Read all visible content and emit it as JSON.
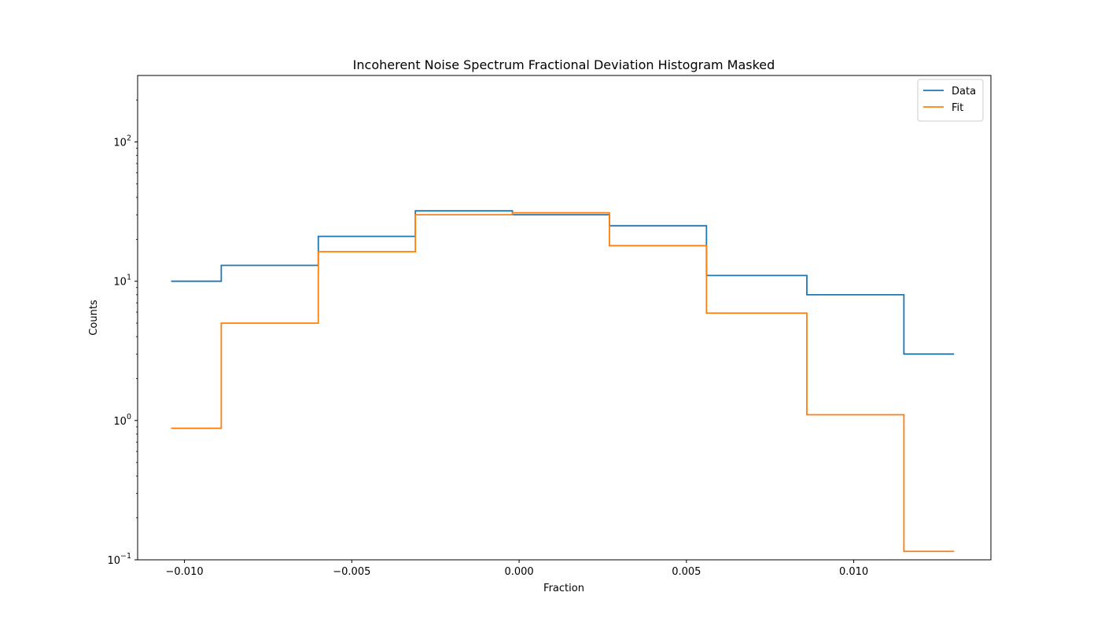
{
  "chart_data": {
    "type": "line",
    "drawstyle": "steps-post",
    "title": "Incoherent Noise Spectrum Fractional Deviation Histogram Masked",
    "xlabel": "Fraction",
    "ylabel": "Counts",
    "xlim": [
      -0.0114,
      0.0141
    ],
    "ylim": [
      0.1,
      300
    ],
    "yscale": "log",
    "grid": false,
    "legend_position": "top-right",
    "x_ticks": [
      -0.01,
      -0.005,
      0.0,
      0.005,
      0.01
    ],
    "x_tick_labels": [
      "−0.010",
      "−0.005",
      "0.000",
      "0.005",
      "0.010"
    ],
    "y_ticks": [
      0.1,
      1,
      10,
      100
    ],
    "y_tick_bases": [
      "10",
      "10",
      "10",
      "10"
    ],
    "y_tick_exponents": [
      "−1",
      "0",
      "1",
      "2"
    ],
    "x": [
      -0.0104,
      -0.0089,
      -0.006,
      -0.0031,
      -0.0002,
      0.0027,
      0.0056,
      0.0086,
      0.0115,
      0.013
    ],
    "series": [
      {
        "name": "Data",
        "color": "#1f77b4",
        "values": [
          10,
          13,
          21,
          32,
          30,
          25,
          11,
          8,
          3,
          3
        ]
      },
      {
        "name": "Fit",
        "color": "#ff7f0e",
        "values": [
          0.88,
          5,
          16.3,
          30,
          31,
          18,
          5.9,
          1.1,
          0.115,
          0.115
        ]
      }
    ]
  }
}
